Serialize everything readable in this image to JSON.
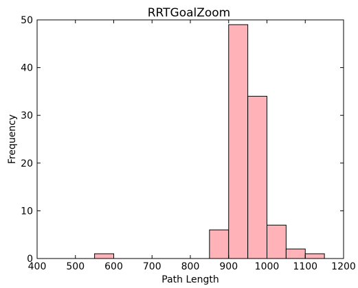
{
  "chart_data": {
    "type": "bar",
    "title": "RRTGoalZoom",
    "xlabel": "Path Length",
    "ylabel": "Frequency",
    "xlim": [
      400,
      1200
    ],
    "ylim": [
      0,
      50
    ],
    "xticks": [
      400,
      500,
      600,
      700,
      800,
      900,
      1000,
      1100,
      1200
    ],
    "yticks": [
      0,
      10,
      20,
      30,
      40,
      50
    ],
    "grid": false,
    "bar_color": "#ffb3b8",
    "bar_edge_color": "#000000",
    "bins": [
      {
        "x0": 550,
        "x1": 600,
        "value": 1
      },
      {
        "x0": 850,
        "x1": 900,
        "value": 6
      },
      {
        "x0": 900,
        "x1": 950,
        "value": 49
      },
      {
        "x0": 950,
        "x1": 1000,
        "value": 34
      },
      {
        "x0": 1000,
        "x1": 1050,
        "value": 7
      },
      {
        "x0": 1050,
        "x1": 1100,
        "value": 2
      },
      {
        "x0": 1100,
        "x1": 1150,
        "value": 1
      }
    ]
  }
}
